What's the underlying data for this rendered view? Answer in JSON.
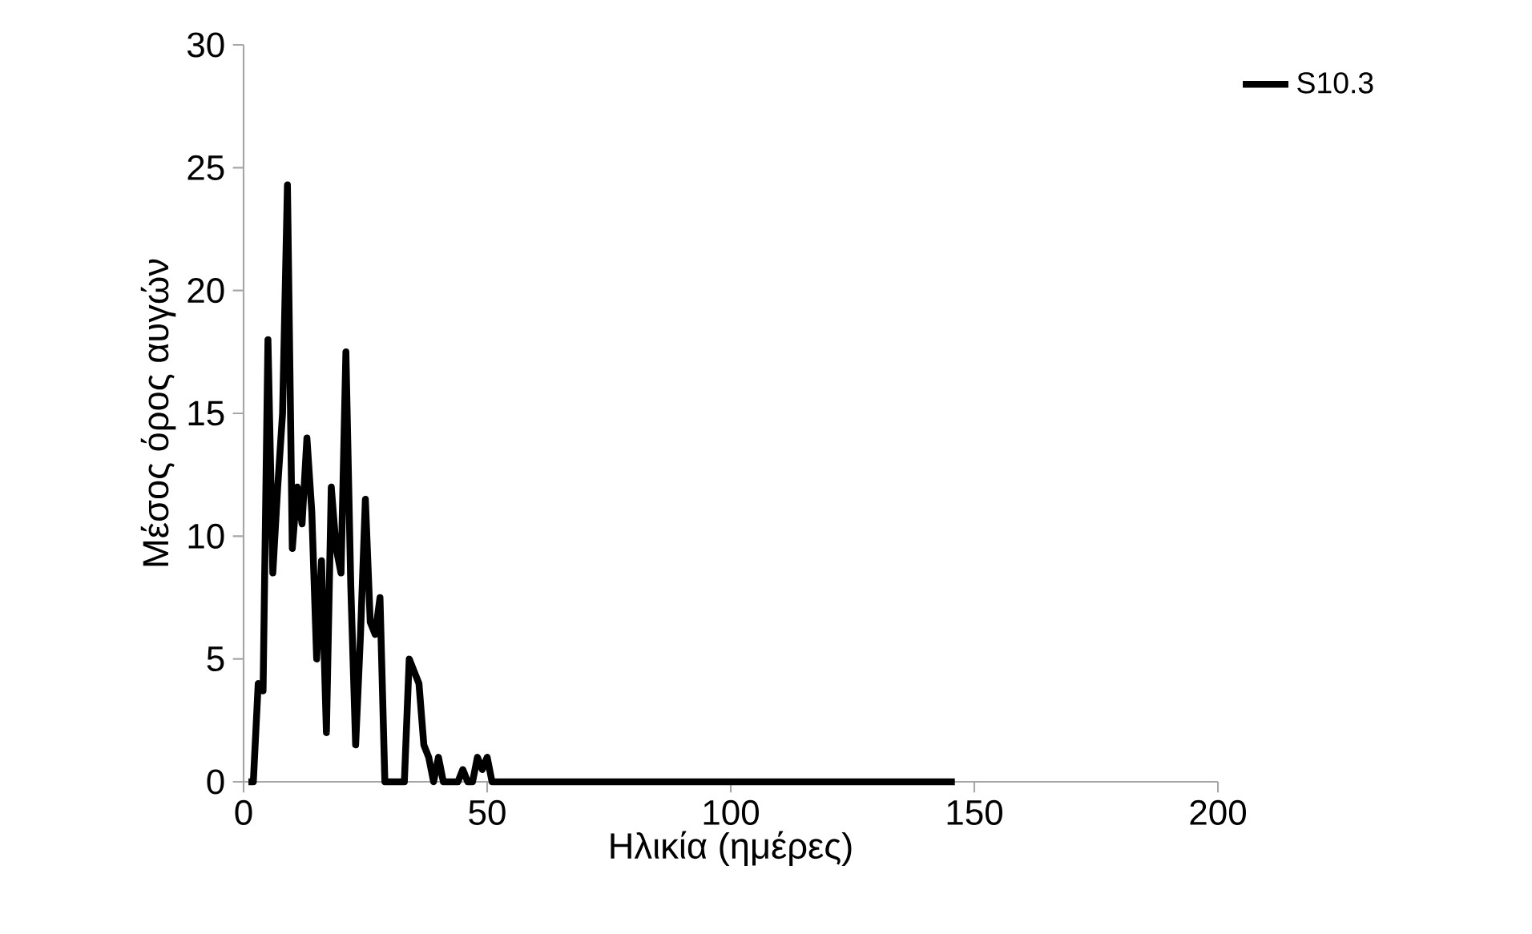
{
  "chart_data": {
    "type": "line",
    "xlabel": "Ηλικία (ημέρες)",
    "ylabel": "Μέσος όρος αυγών",
    "x": [
      1,
      2,
      3,
      4,
      5,
      6,
      7,
      8,
      9,
      10,
      11,
      12,
      13,
      14,
      15,
      16,
      17,
      18,
      19,
      20,
      21,
      22,
      23,
      24,
      25,
      26,
      27,
      28,
      29,
      30,
      31,
      32,
      33,
      34,
      35,
      36,
      37,
      38,
      39,
      40,
      41,
      42,
      43,
      44,
      45,
      46,
      47,
      48,
      49,
      50,
      51,
      146
    ],
    "series": [
      {
        "name": "S10.3",
        "color": "#000000",
        "values": [
          0,
          0,
          4,
          3.7,
          18,
          8.5,
          12,
          15,
          24.3,
          9.5,
          12,
          10.5,
          14,
          11,
          5,
          9,
          2,
          12,
          9.5,
          8.5,
          17.5,
          8,
          1.5,
          6,
          11.5,
          6.5,
          6,
          7.5,
          0,
          0,
          0,
          0,
          0,
          5,
          4.5,
          4,
          1.5,
          1,
          0,
          1,
          0,
          0,
          0,
          0,
          0.5,
          0,
          0,
          1,
          0.5,
          1,
          0,
          0
        ]
      }
    ],
    "xlim": [
      0,
      200
    ],
    "ylim": [
      0,
      30
    ],
    "xticks": [
      0,
      50,
      100,
      150,
      200
    ],
    "yticks": [
      0,
      5,
      10,
      15,
      20,
      25,
      30
    ],
    "legend": "top right",
    "line_style": "solid"
  }
}
